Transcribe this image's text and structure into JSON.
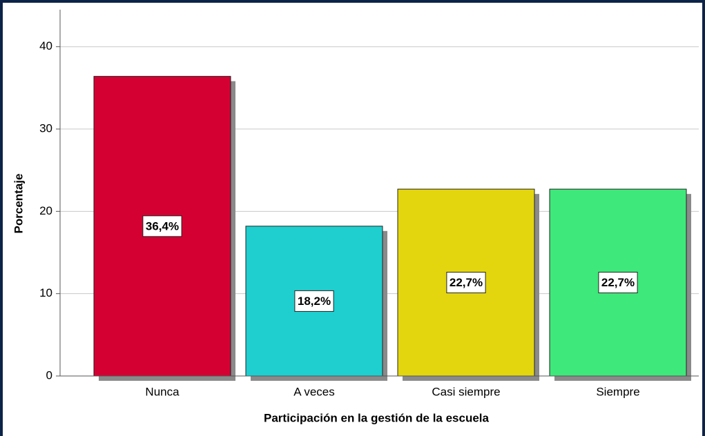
{
  "chart_data": {
    "type": "bar",
    "y_label": "Porcentaje",
    "x_label": "Participación en la gestión de la escuela",
    "categories": [
      "Nunca",
      "A veces",
      "Casi siempre",
      "Siempre"
    ],
    "values": [
      36.4,
      18.2,
      22.7,
      22.7
    ],
    "value_labels": [
      "36,4%",
      "18,2%",
      "22,7%",
      "22,7%"
    ],
    "colors": [
      "#d50032",
      "#1fcfcf",
      "#e3d60f",
      "#3ee87a"
    ],
    "ylim": [
      0,
      44.5
    ],
    "yticks": [
      0,
      10,
      20,
      30,
      40
    ],
    "grid": true
  }
}
